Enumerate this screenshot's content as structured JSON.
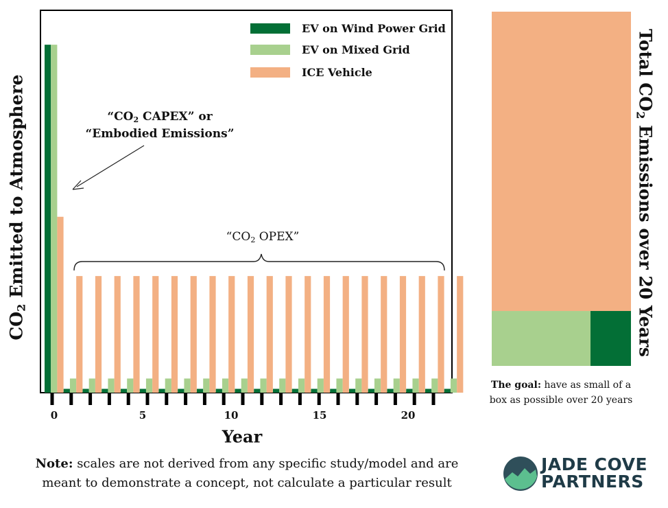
{
  "chart_data": [
    {
      "type": "bar",
      "xlabel": "Year",
      "ylabel": "CO₂ Emitted to Atmosphere",
      "x_ticks": [
        0,
        5,
        10,
        15,
        20
      ],
      "x": [
        0,
        1,
        2,
        3,
        4,
        5,
        6,
        7,
        8,
        9,
        10,
        11,
        12,
        13,
        14,
        15,
        16,
        17,
        18,
        19,
        20,
        21
      ],
      "ylim": [
        0,
        100
      ],
      "legend_position": "top-right",
      "series": [
        {
          "name": "EV on Wind Power Grid",
          "color": "#036f36",
          "values": [
            91,
            1,
            1,
            1,
            1,
            1,
            1,
            1,
            1,
            1,
            1,
            1,
            1,
            1,
            1,
            1,
            1,
            1,
            1,
            1,
            1,
            1
          ]
        },
        {
          "name": "EV on Mixed Grid",
          "color": "#a8d08e",
          "values": [
            91,
            3.7,
            3.7,
            3.7,
            3.7,
            3.7,
            3.7,
            3.7,
            3.7,
            3.7,
            3.7,
            3.7,
            3.7,
            3.7,
            3.7,
            3.7,
            3.7,
            3.7,
            3.7,
            3.7,
            3.7,
            3.7
          ]
        },
        {
          "name": "ICE Vehicle",
          "color": "#f3b083",
          "values": [
            46,
            30.5,
            30.5,
            30.5,
            30.5,
            30.5,
            30.5,
            30.5,
            30.5,
            30.5,
            30.5,
            30.5,
            30.5,
            30.5,
            30.5,
            30.5,
            30.5,
            30.5,
            30.5,
            30.5,
            30.5,
            30.5
          ]
        }
      ],
      "annotations": {
        "capex_line1": "“CO₂ CAPEX” or",
        "capex_line2": "“Embodied Emissions”",
        "opex": "“CO₂ OPEX”"
      }
    },
    {
      "type": "area",
      "ylabel": "Total CO₂ Emissions over 20 Years",
      "description": "Stacked comparison boxes",
      "segments": [
        {
          "name": "ICE Vehicle",
          "color": "#f3b083",
          "share": 0.845
        },
        {
          "name": "EV on Mixed Grid",
          "color": "#a8d08e",
          "share": 0.155
        },
        {
          "name": "EV on Wind Power Grid",
          "color": "#036f36",
          "share": 0.045
        }
      ]
    }
  ],
  "goal_text": {
    "bold": "The goal:",
    "line1_rest": " have as small of a",
    "line2": "box as possible over 20 years"
  },
  "note": {
    "bold": "Note:",
    "line1_rest": " scales are not derived from any specific study/model and are",
    "line2": "meant to demonstrate a concept, not calculate a particular result"
  },
  "logo": {
    "line1": "JADE COVE",
    "line2": "PARTNERS",
    "colors": {
      "dark": "#2f4f5a",
      "green": "#5cbf8f",
      "text": "#1f3b47"
    }
  }
}
